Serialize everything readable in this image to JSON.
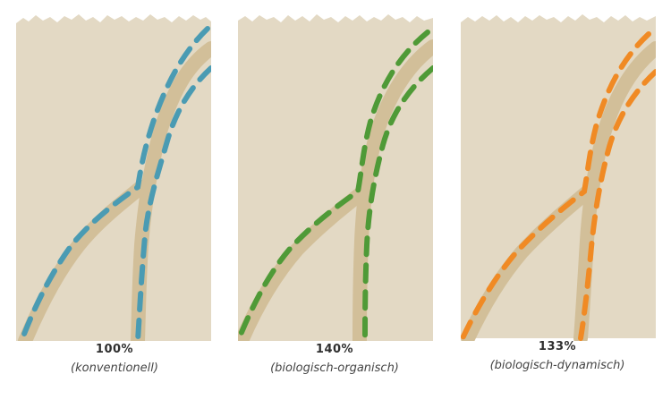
{
  "panels": [
    {
      "percent": "100%",
      "label": "(konventionell)",
      "color": "#4a9bb3"
    },
    {
      "percent": "140%",
      "label": "(biologisch-organisch)",
      "color": "#4f9a37"
    },
    {
      "percent": "133%",
      "label": "(biologisch-dynamisch)",
      "color": "#f08a24"
    }
  ],
  "colors": {
    "background": "#e3d9c4",
    "root_band": "#d2bf99"
  }
}
